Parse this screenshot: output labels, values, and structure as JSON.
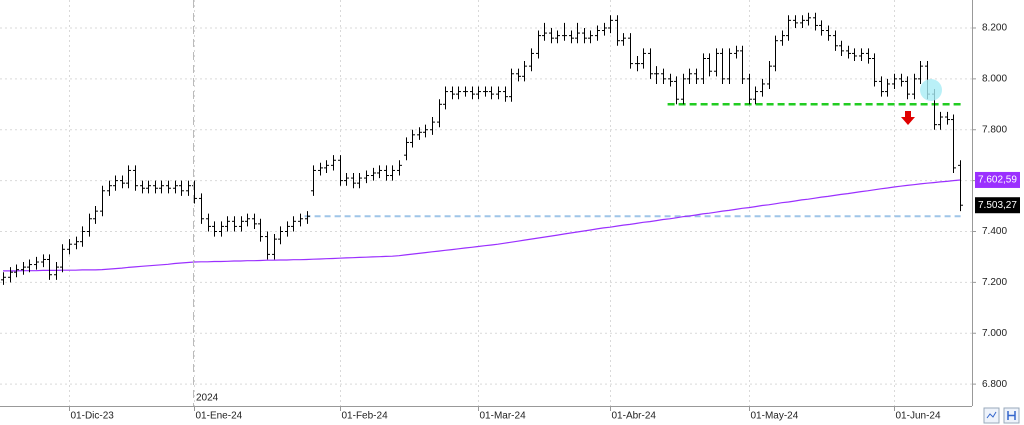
{
  "chart_data": {
    "type": "ohlc",
    "year_label": "2024",
    "ylim": [
      6714,
      8310
    ],
    "yticks": [
      {
        "value": 8200,
        "label": "8.200"
      },
      {
        "value": 8000,
        "label": "8.000"
      },
      {
        "value": 7800,
        "label": "7.800"
      },
      {
        "value": 7600,
        "label": "7.600"
      },
      {
        "value": 7400,
        "label": "7.400"
      },
      {
        "value": 7200,
        "label": "7.200"
      },
      {
        "value": 7000,
        "label": "7.000"
      },
      {
        "value": 6800,
        "label": "6.800"
      }
    ],
    "grid": true,
    "bar_color": "#000000",
    "categories": [
      null,
      null,
      null,
      null,
      null,
      null,
      null,
      null,
      null,
      null,
      "01-Dic-23",
      null,
      null,
      null,
      null,
      null,
      null,
      null,
      null,
      null,
      null,
      null,
      null,
      null,
      null,
      null,
      null,
      null,
      null,
      "01-Ene-24",
      null,
      null,
      null,
      null,
      null,
      null,
      null,
      null,
      null,
      null,
      null,
      null,
      null,
      null,
      null,
      null,
      null,
      null,
      null,
      null,
      null,
      "01-Feb-24",
      null,
      null,
      null,
      null,
      null,
      null,
      null,
      null,
      null,
      null,
      null,
      null,
      null,
      null,
      null,
      null,
      null,
      null,
      null,
      null,
      "01-Mar-24",
      null,
      null,
      null,
      null,
      null,
      null,
      null,
      null,
      null,
      null,
      null,
      null,
      null,
      null,
      null,
      null,
      null,
      null,
      null,
      "01-Abr-24",
      null,
      null,
      null,
      null,
      null,
      null,
      null,
      null,
      null,
      null,
      null,
      null,
      null,
      null,
      null,
      null,
      null,
      null,
      null,
      null,
      "01-May-24",
      null,
      null,
      null,
      null,
      null,
      null,
      null,
      null,
      null,
      null,
      null,
      null,
      null,
      null,
      null,
      null,
      null,
      null,
      null,
      null,
      null,
      "01-Jun-24",
      null,
      null,
      null,
      null,
      null,
      null,
      null,
      null,
      null,
      null
    ],
    "ohlc": [
      [
        7210,
        7240,
        7190,
        7220
      ],
      [
        7220,
        7260,
        7200,
        7240
      ],
      [
        7240,
        7270,
        7220,
        7250
      ],
      [
        7250,
        7280,
        7230,
        7260
      ],
      [
        7260,
        7290,
        7240,
        7270
      ],
      [
        7270,
        7300,
        7250,
        7280
      ],
      [
        7280,
        7310,
        7260,
        7290
      ],
      [
        7290,
        7310,
        7210,
        7230
      ],
      [
        7230,
        7280,
        7210,
        7260
      ],
      [
        7260,
        7350,
        7240,
        7330
      ],
      [
        7330,
        7370,
        7310,
        7350
      ],
      [
        7350,
        7380,
        7330,
        7360
      ],
      [
        7360,
        7420,
        7340,
        7400
      ],
      [
        7400,
        7470,
        7380,
        7450
      ],
      [
        7450,
        7500,
        7430,
        7480
      ],
      [
        7480,
        7580,
        7460,
        7560
      ],
      [
        7560,
        7600,
        7540,
        7580
      ],
      [
        7580,
        7620,
        7560,
        7600
      ],
      [
        7600,
        7620,
        7570,
        7590
      ],
      [
        7590,
        7660,
        7570,
        7640
      ],
      [
        7640,
        7660,
        7560,
        7580
      ],
      [
        7580,
        7600,
        7550,
        7570
      ],
      [
        7570,
        7600,
        7550,
        7580
      ],
      [
        7580,
        7600,
        7550,
        7570
      ],
      [
        7570,
        7600,
        7550,
        7580
      ],
      [
        7580,
        7600,
        7550,
        7570
      ],
      [
        7570,
        7600,
        7550,
        7580
      ],
      [
        7580,
        7600,
        7540,
        7560
      ],
      [
        7560,
        7600,
        7540,
        7580
      ],
      [
        7580,
        7600,
        7510,
        7530
      ],
      [
        7530,
        7550,
        7430,
        7450
      ],
      [
        7450,
        7470,
        7400,
        7420
      ],
      [
        7420,
        7440,
        7380,
        7400
      ],
      [
        7400,
        7440,
        7380,
        7420
      ],
      [
        7420,
        7460,
        7400,
        7440
      ],
      [
        7440,
        7460,
        7400,
        7420
      ],
      [
        7420,
        7460,
        7400,
        7440
      ],
      [
        7440,
        7470,
        7420,
        7450
      ],
      [
        7450,
        7470,
        7410,
        7430
      ],
      [
        7430,
        7450,
        7360,
        7380
      ],
      [
        7380,
        7400,
        7290,
        7310
      ],
      [
        7310,
        7390,
        7290,
        7370
      ],
      [
        7370,
        7420,
        7350,
        7400
      ],
      [
        7400,
        7440,
        7380,
        7420
      ],
      [
        7420,
        7460,
        7400,
        7440
      ],
      [
        7440,
        7470,
        7420,
        7450
      ],
      [
        7450,
        7480,
        7430,
        7460
      ],
      [
        7560,
        7660,
        7540,
        7640
      ],
      [
        7640,
        7670,
        7620,
        7650
      ],
      [
        7650,
        7680,
        7630,
        7660
      ],
      [
        7660,
        7700,
        7640,
        7680
      ],
      [
        7680,
        7700,
        7580,
        7600
      ],
      [
        7600,
        7630,
        7580,
        7610
      ],
      [
        7610,
        7630,
        7570,
        7590
      ],
      [
        7590,
        7630,
        7570,
        7610
      ],
      [
        7610,
        7640,
        7590,
        7620
      ],
      [
        7620,
        7650,
        7600,
        7630
      ],
      [
        7630,
        7660,
        7610,
        7640
      ],
      [
        7640,
        7660,
        7600,
        7620
      ],
      [
        7620,
        7660,
        7600,
        7640
      ],
      [
        7640,
        7680,
        7620,
        7660
      ],
      [
        7700,
        7770,
        7680,
        7750
      ],
      [
        7750,
        7800,
        7730,
        7780
      ],
      [
        7780,
        7810,
        7760,
        7790
      ],
      [
        7790,
        7820,
        7770,
        7800
      ],
      [
        7800,
        7850,
        7780,
        7830
      ],
      [
        7830,
        7920,
        7810,
        7900
      ],
      [
        7900,
        7970,
        7880,
        7950
      ],
      [
        7950,
        7970,
        7920,
        7940
      ],
      [
        7940,
        7970,
        7920,
        7950
      ],
      [
        7950,
        7970,
        7930,
        7950
      ],
      [
        7950,
        7970,
        7920,
        7940
      ],
      [
        7940,
        7970,
        7920,
        7950
      ],
      [
        7950,
        7970,
        7930,
        7950
      ],
      [
        7950,
        7970,
        7920,
        7940
      ],
      [
        7940,
        7970,
        7920,
        7950
      ],
      [
        7950,
        7970,
        7910,
        7930
      ],
      [
        7930,
        8040,
        7910,
        8020
      ],
      [
        8020,
        8040,
        7990,
        8010
      ],
      [
        8010,
        8070,
        7990,
        8050
      ],
      [
        8050,
        8120,
        8030,
        8100
      ],
      [
        8100,
        8190,
        8080,
        8170
      ],
      [
        8170,
        8220,
        8150,
        8180
      ],
      [
        8180,
        8200,
        8140,
        8160
      ],
      [
        8160,
        8190,
        8140,
        8170
      ],
      [
        8170,
        8220,
        8150,
        8170
      ],
      [
        8170,
        8190,
        8140,
        8160
      ],
      [
        8160,
        8220,
        8140,
        8180
      ],
      [
        8180,
        8200,
        8140,
        8160
      ],
      [
        8160,
        8190,
        8140,
        8170
      ],
      [
        8170,
        8210,
        8150,
        8190
      ],
      [
        8190,
        8220,
        8170,
        8200
      ],
      [
        8200,
        8250,
        8180,
        8230
      ],
      [
        8230,
        8250,
        8130,
        8150
      ],
      [
        8150,
        8180,
        8130,
        8160
      ],
      [
        8160,
        8180,
        8040,
        8060
      ],
      [
        8060,
        8090,
        8030,
        8060
      ],
      [
        8060,
        8120,
        8040,
        8100
      ],
      [
        8100,
        8120,
        8000,
        8020
      ],
      [
        8020,
        8050,
        7980,
        8020
      ],
      [
        8020,
        8040,
        7980,
        8000
      ],
      [
        8000,
        8020,
        7970,
        7990
      ],
      [
        7990,
        8010,
        7900,
        7920
      ],
      [
        7920,
        8020,
        7900,
        8000
      ],
      [
        8000,
        8040,
        7980,
        8020
      ],
      [
        8020,
        8040,
        7980,
        8000
      ],
      [
        8000,
        8100,
        7980,
        8080
      ],
      [
        8080,
        8100,
        8010,
        8030
      ],
      [
        8030,
        8120,
        8010,
        8100
      ],
      [
        8100,
        8120,
        7980,
        8000
      ],
      [
        8000,
        8120,
        7980,
        8100
      ],
      [
        8100,
        8130,
        8080,
        8110
      ],
      [
        8110,
        8130,
        7980,
        8000
      ],
      [
        8000,
        8020,
        7900,
        7920
      ],
      [
        7920,
        7970,
        7900,
        7950
      ],
      [
        7950,
        8000,
        7930,
        7980
      ],
      [
        7980,
        8070,
        7960,
        8050
      ],
      [
        8050,
        8170,
        8030,
        8150
      ],
      [
        8150,
        8190,
        8130,
        8170
      ],
      [
        8170,
        8250,
        8150,
        8230
      ],
      [
        8230,
        8250,
        8200,
        8220
      ],
      [
        8220,
        8250,
        8200,
        8230
      ],
      [
        8230,
        8260,
        8210,
        8240
      ],
      [
        8240,
        8260,
        8190,
        8210
      ],
      [
        8210,
        8230,
        8170,
        8190
      ],
      [
        8190,
        8210,
        8150,
        8170
      ],
      [
        8170,
        8190,
        8110,
        8130
      ],
      [
        8130,
        8150,
        8090,
        8110
      ],
      [
        8110,
        8130,
        8080,
        8100
      ],
      [
        8100,
        8120,
        8070,
        8090
      ],
      [
        8090,
        8120,
        8070,
        8100
      ],
      [
        8100,
        8120,
        8060,
        8080
      ],
      [
        8080,
        8100,
        7970,
        7990
      ],
      [
        7990,
        8010,
        7930,
        7950
      ],
      [
        7950,
        8000,
        7930,
        7980
      ],
      [
        7980,
        8020,
        7960,
        8000
      ],
      [
        8000,
        8020,
        7970,
        7990
      ],
      [
        7990,
        8010,
        7920,
        7940
      ],
      [
        7940,
        8020,
        7920,
        8000
      ],
      [
        8000,
        8070,
        7980,
        8050
      ],
      [
        8050,
        8070,
        7920,
        7940
      ],
      [
        7940,
        7960,
        7800,
        7820
      ],
      [
        7820,
        7870,
        7800,
        7850
      ],
      [
        7850,
        7870,
        7820,
        7840
      ],
      [
        7840,
        7860,
        7630,
        7650
      ],
      [
        7660,
        7680,
        7480,
        7503.27
      ]
    ],
    "moving_average": {
      "color": "#9b30ff",
      "values": [
        7245,
        7245,
        7245,
        7246,
        7246,
        7246,
        7247,
        7247,
        7247,
        7248,
        7248,
        7248,
        7249,
        7249,
        7249,
        7250,
        7252,
        7254,
        7256,
        7259,
        7261,
        7263,
        7265,
        7267,
        7269,
        7271,
        7274,
        7276,
        7278,
        7280,
        7281,
        7281,
        7282,
        7282,
        7283,
        7284,
        7284,
        7285,
        7285,
        7286,
        7287,
        7287,
        7288,
        7288,
        7289,
        7289,
        7290,
        7291,
        7292,
        7293,
        7294,
        7295,
        7296,
        7297,
        7298,
        7299,
        7300,
        7301,
        7302,
        7303,
        7305,
        7308,
        7311,
        7314,
        7317,
        7320,
        7323,
        7326,
        7329,
        7332,
        7335,
        7338,
        7341,
        7344,
        7347,
        7350,
        7354,
        7358,
        7362,
        7366,
        7370,
        7374,
        7378,
        7382,
        7386,
        7390,
        7394,
        7398,
        7402,
        7406,
        7410,
        7414,
        7417,
        7421,
        7425,
        7428,
        7432,
        7436,
        7439,
        7443,
        7447,
        7450,
        7454,
        7458,
        7461,
        7465,
        7469,
        7472,
        7476,
        7480,
        7483,
        7487,
        7491,
        7494,
        7498,
        7502,
        7505,
        7509,
        7513,
        7516,
        7520,
        7524,
        7527,
        7531,
        7535,
        7538,
        7542,
        7546,
        7549,
        7553,
        7557,
        7560,
        7564,
        7568,
        7571,
        7575,
        7578,
        7581,
        7584,
        7587,
        7590,
        7592,
        7595,
        7597,
        7600,
        7602.59
      ]
    },
    "hlines": [
      {
        "value": 7900,
        "color": "#22cc22"
      },
      {
        "value": 7460,
        "color": "#9fc5e8"
      }
    ],
    "price_tags": [
      {
        "value": 7602.59,
        "label": "7.602,59",
        "color": "#9b30ff"
      },
      {
        "value": 7503.27,
        "label": "7.503,27",
        "color": "#000000"
      }
    ]
  }
}
